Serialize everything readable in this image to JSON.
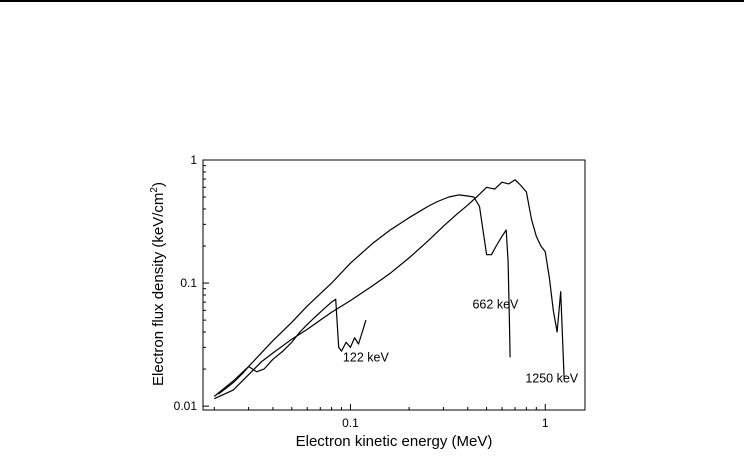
{
  "chart_data": {
    "type": "line",
    "title": "",
    "xlabel": "Electron kinetic energy (MeV)",
    "ylabel": "Electron flux density (keV/cm",
    "ylabel_sup": "2",
    "ylabel_close": ")",
    "x_scale": "log",
    "y_scale": "log",
    "xlim": [
      0.0175,
      1.6
    ],
    "ylim": [
      0.0093,
      1.0
    ],
    "x_ticks": [
      {
        "value": 0.1,
        "label": "0.1"
      },
      {
        "value": 1,
        "label": "1"
      }
    ],
    "y_ticks": [
      {
        "value": 0.01,
        "label": "0.01"
      },
      {
        "value": 0.1,
        "label": "0.1"
      },
      {
        "value": 1,
        "label": "1"
      }
    ],
    "grid": false,
    "legend": "none",
    "annotations": [
      {
        "text": "122 keV",
        "x": 0.12,
        "y": 0.023
      },
      {
        "text": "662 keV",
        "x": 0.555,
        "y": 0.062
      },
      {
        "text": "1250 keV",
        "x": 1.08,
        "y": 0.0155
      }
    ],
    "series": [
      {
        "x": [
          0.02,
          0.025,
          0.03,
          0.04,
          0.05,
          0.06,
          0.08,
          0.1,
          0.13,
          0.16,
          0.2,
          0.25,
          0.28,
          0.32,
          0.36,
          0.4,
          0.43,
          0.46,
          0.5,
          0.53,
          0.56,
          0.6,
          0.63,
          0.645,
          0.655,
          0.66
        ],
        "y": [
          0.012,
          0.016,
          0.021,
          0.034,
          0.048,
          0.065,
          0.1,
          0.145,
          0.21,
          0.27,
          0.34,
          0.42,
          0.46,
          0.5,
          0.52,
          0.51,
          0.5,
          0.42,
          0.17,
          0.17,
          0.2,
          0.24,
          0.27,
          0.15,
          0.05,
          0.025
        ]
      },
      {
        "x": [
          0.02,
          0.025,
          0.03,
          0.035,
          0.04,
          0.05,
          0.06,
          0.07,
          0.08,
          0.1,
          0.13,
          0.16,
          0.2,
          0.25,
          0.3,
          0.35,
          0.4,
          0.45,
          0.5,
          0.55,
          0.6,
          0.65,
          0.7,
          0.75,
          0.8,
          0.85,
          0.9,
          0.95,
          1.0,
          1.05,
          1.1,
          1.15,
          1.2,
          1.25
        ],
        "y": [
          0.0115,
          0.0135,
          0.018,
          0.023,
          0.027,
          0.035,
          0.042,
          0.05,
          0.058,
          0.072,
          0.095,
          0.12,
          0.16,
          0.22,
          0.29,
          0.36,
          0.43,
          0.51,
          0.6,
          0.58,
          0.66,
          0.64,
          0.69,
          0.62,
          0.55,
          0.33,
          0.24,
          0.2,
          0.18,
          0.11,
          0.06,
          0.04,
          0.085,
          0.017
        ]
      },
      {
        "x": [
          0.021,
          0.025,
          0.028,
          0.03,
          0.033,
          0.036,
          0.04,
          0.045,
          0.05,
          0.055,
          0.06,
          0.065,
          0.07,
          0.075,
          0.08,
          0.084,
          0.087,
          0.09,
          0.095,
          0.1,
          0.105,
          0.11,
          0.115,
          0.12
        ],
        "y": [
          0.0125,
          0.0155,
          0.0185,
          0.021,
          0.019,
          0.02,
          0.024,
          0.028,
          0.033,
          0.04,
          0.046,
          0.052,
          0.058,
          0.064,
          0.07,
          0.074,
          0.03,
          0.028,
          0.033,
          0.03,
          0.036,
          0.032,
          0.04,
          0.05
        ]
      }
    ]
  }
}
